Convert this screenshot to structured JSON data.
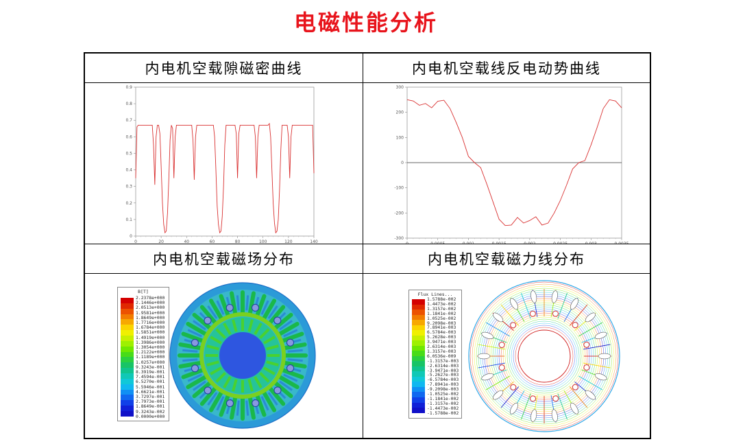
{
  "page": {
    "title": "电磁性能分析"
  },
  "panels": {
    "tl": {
      "title": "内电机空载隙磁密曲线"
    },
    "tr": {
      "title": "内电机空载线反电动势曲线"
    },
    "bl": {
      "title": "内电机空载磁场分布"
    },
    "br": {
      "title": "内电机空载磁力线分布"
    }
  },
  "chart_data": [
    {
      "type": "line",
      "name": "air-gap-flux-density",
      "xlim": [
        0,
        140
      ],
      "ylim": [
        0,
        0.9
      ],
      "x_ticks": [
        "0",
        "20",
        "40",
        "60",
        "80",
        "100",
        "120",
        "140"
      ],
      "y_ticks": [
        "0",
        "0.1",
        "0.2",
        "0.3",
        "0.4",
        "0.5",
        "0.6",
        "0.7",
        "0.8",
        "0.9"
      ],
      "color": "#d93030",
      "grid": false,
      "x": [
        0,
        1,
        2,
        3,
        4,
        5,
        6,
        7,
        8,
        9,
        10,
        11,
        12,
        13,
        14,
        15,
        16,
        17,
        18,
        19,
        20,
        21,
        22,
        23,
        24,
        25,
        26,
        27,
        28,
        29,
        30,
        31,
        32,
        33,
        34,
        35,
        36,
        37,
        38,
        39,
        40,
        41,
        42,
        43,
        44,
        45,
        46,
        47,
        48,
        49,
        50,
        51,
        52,
        53,
        54,
        55,
        56,
        57,
        58,
        59,
        60,
        61,
        62,
        63,
        64,
        65,
        66,
        67,
        68,
        69,
        70,
        71,
        72,
        73,
        74,
        75,
        76,
        77,
        78,
        79,
        80,
        81,
        82,
        83,
        84,
        85,
        86,
        87,
        88,
        89,
        90,
        91,
        92,
        93,
        94,
        95,
        96,
        97,
        98,
        99,
        100,
        101,
        102,
        103,
        104,
        105,
        106,
        107,
        108,
        109,
        110,
        111,
        112,
        113,
        114,
        115,
        116,
        117,
        118,
        119,
        120,
        121,
        122,
        123,
        124,
        125,
        126,
        127,
        128,
        129,
        130,
        131,
        132,
        133,
        134,
        135,
        136,
        137,
        138,
        139,
        140
      ],
      "y": [
        0.35,
        0.66,
        0.67,
        0.67,
        0.67,
        0.67,
        0.67,
        0.67,
        0.67,
        0.67,
        0.67,
        0.67,
        0.67,
        0.67,
        0.55,
        0.31,
        0.6,
        0.67,
        0.67,
        0.62,
        0.42,
        0.2,
        0.07,
        0.02,
        0.03,
        0.14,
        0.34,
        0.58,
        0.67,
        0.65,
        0.35,
        0.6,
        0.67,
        0.67,
        0.67,
        0.67,
        0.67,
        0.67,
        0.67,
        0.67,
        0.67,
        0.67,
        0.67,
        0.67,
        0.67,
        0.58,
        0.34,
        0.6,
        0.67,
        0.67,
        0.67,
        0.67,
        0.67,
        0.67,
        0.67,
        0.67,
        0.67,
        0.67,
        0.67,
        0.67,
        0.67,
        0.67,
        0.6,
        0.4,
        0.18,
        0.07,
        0.02,
        0.03,
        0.12,
        0.3,
        0.55,
        0.67,
        0.67,
        0.67,
        0.67,
        0.67,
        0.67,
        0.67,
        0.67,
        0.62,
        0.35,
        0.62,
        0.67,
        0.67,
        0.67,
        0.67,
        0.67,
        0.67,
        0.67,
        0.67,
        0.67,
        0.67,
        0.67,
        0.67,
        0.6,
        0.35,
        0.6,
        0.67,
        0.67,
        0.67,
        0.67,
        0.67,
        0.67,
        0.67,
        0.67,
        0.68,
        0.6,
        0.4,
        0.2,
        0.08,
        0.02,
        0.03,
        0.1,
        0.28,
        0.52,
        0.67,
        0.67,
        0.67,
        0.67,
        0.67,
        0.6,
        0.35,
        0.6,
        0.67,
        0.67,
        0.67,
        0.67,
        0.67,
        0.67,
        0.67,
        0.67,
        0.67,
        0.67,
        0.67,
        0.67,
        0.67,
        0.67,
        0.67,
        0.67,
        0.67,
        0.38
      ]
    },
    {
      "type": "line",
      "name": "back-emf",
      "xlim": [
        0,
        0.0035
      ],
      "ylim": [
        -300,
        300
      ],
      "x_ticks": [
        "0",
        "0.0005",
        "0.001",
        "0.0015",
        "0.002",
        "0.0025",
        "0.003",
        "0.0035"
      ],
      "y_ticks": [
        "300",
        "200",
        "100",
        "0",
        "-100",
        "-200",
        "-300"
      ],
      "color": "#d93030",
      "zero_line": true,
      "grid": false,
      "x": [
        0,
        0.0001,
        0.0002,
        0.0003,
        0.0004,
        0.0005,
        0.0006,
        0.0007,
        0.0008,
        0.0009,
        0.001,
        0.0011,
        0.0012,
        0.0013,
        0.0014,
        0.0015,
        0.0016,
        0.0017,
        0.0018,
        0.0019,
        0.002,
        0.0021,
        0.0022,
        0.0023,
        0.0024,
        0.0025,
        0.0026,
        0.0027,
        0.0028,
        0.0029,
        0.003,
        0.0031,
        0.0032,
        0.0033,
        0.0034,
        0.0035
      ],
      "y": [
        250,
        245,
        228,
        235,
        218,
        244,
        248,
        215,
        160,
        100,
        25,
        0,
        -20,
        -85,
        -155,
        -225,
        -250,
        -248,
        -218,
        -240,
        -230,
        -215,
        -248,
        -240,
        -200,
        -150,
        -90,
        -25,
        0,
        8,
        70,
        140,
        215,
        250,
        245,
        218
      ]
    }
  ],
  "field_legend": {
    "title": "B[T]",
    "colors": [
      "#d40000",
      "#e02800",
      "#ec5200",
      "#f27c00",
      "#f7a800",
      "#fbd400",
      "#f0f000",
      "#c8f000",
      "#9ef000",
      "#70e800",
      "#48dc18",
      "#2ad040",
      "#18c466",
      "#10c48e",
      "#10c8b6",
      "#10c8d8",
      "#10b8f0",
      "#1090f4",
      "#1068f0",
      "#1040e8",
      "#1020d8",
      "#1010c8"
    ],
    "labels": [
      "2.2378e+000",
      "2.1446e+000",
      "2.0513e+000",
      "1.9581e+000",
      "1.8649e+000",
      "1.7716e+000",
      "1.6784e+000",
      "1.5851e+000",
      "1.4919e+000",
      "1.3986e+000",
      "1.3054e+000",
      "1.2122e+000",
      "1.1189e+000",
      "1.0257e+000",
      "9.3243e-001",
      "8.3919e-001",
      "7.4594e-001",
      "6.5270e-001",
      "5.5946e-001",
      "4.6621e-001",
      "3.7297e-001",
      "2.7973e-001",
      "1.8649e-001",
      "9.3243e-002",
      "0.0000e+000"
    ]
  },
  "flux_legend": {
    "title": "Flux Lines...",
    "colors": [
      "#d40000",
      "#e02800",
      "#ec5200",
      "#f27c00",
      "#f7a800",
      "#fbd400",
      "#f0f000",
      "#c8f000",
      "#9ef000",
      "#70e800",
      "#48dc18",
      "#2ad040",
      "#18c466",
      "#10c48e",
      "#10c8b6",
      "#10c8d8",
      "#10b8f0",
      "#1090f4",
      "#1068f0",
      "#1040e8",
      "#1020d8",
      "#1010c8"
    ],
    "labels": [
      "1.5788e-002",
      "1.4473e-002",
      "1.3157e-002",
      "1.1841e-002",
      "1.0525e-002",
      "9.2098e-003",
      "7.8941e-003",
      "6.5784e-003",
      "5.2628e-003",
      "3.9471e-003",
      "2.6314e-003",
      "1.3157e-003",
      "6.0536e-009",
      "-1.3157e-003",
      "-2.6314e-003",
      "-3.9471e-003",
      "-5.2627e-003",
      "-6.5784e-003",
      "-7.8941e-003",
      "-9.2098e-003",
      "-1.0525e-002",
      "-1.1841e-002",
      "-1.3157e-002",
      "-1.4473e-002",
      "-1.5788e-002"
    ]
  }
}
